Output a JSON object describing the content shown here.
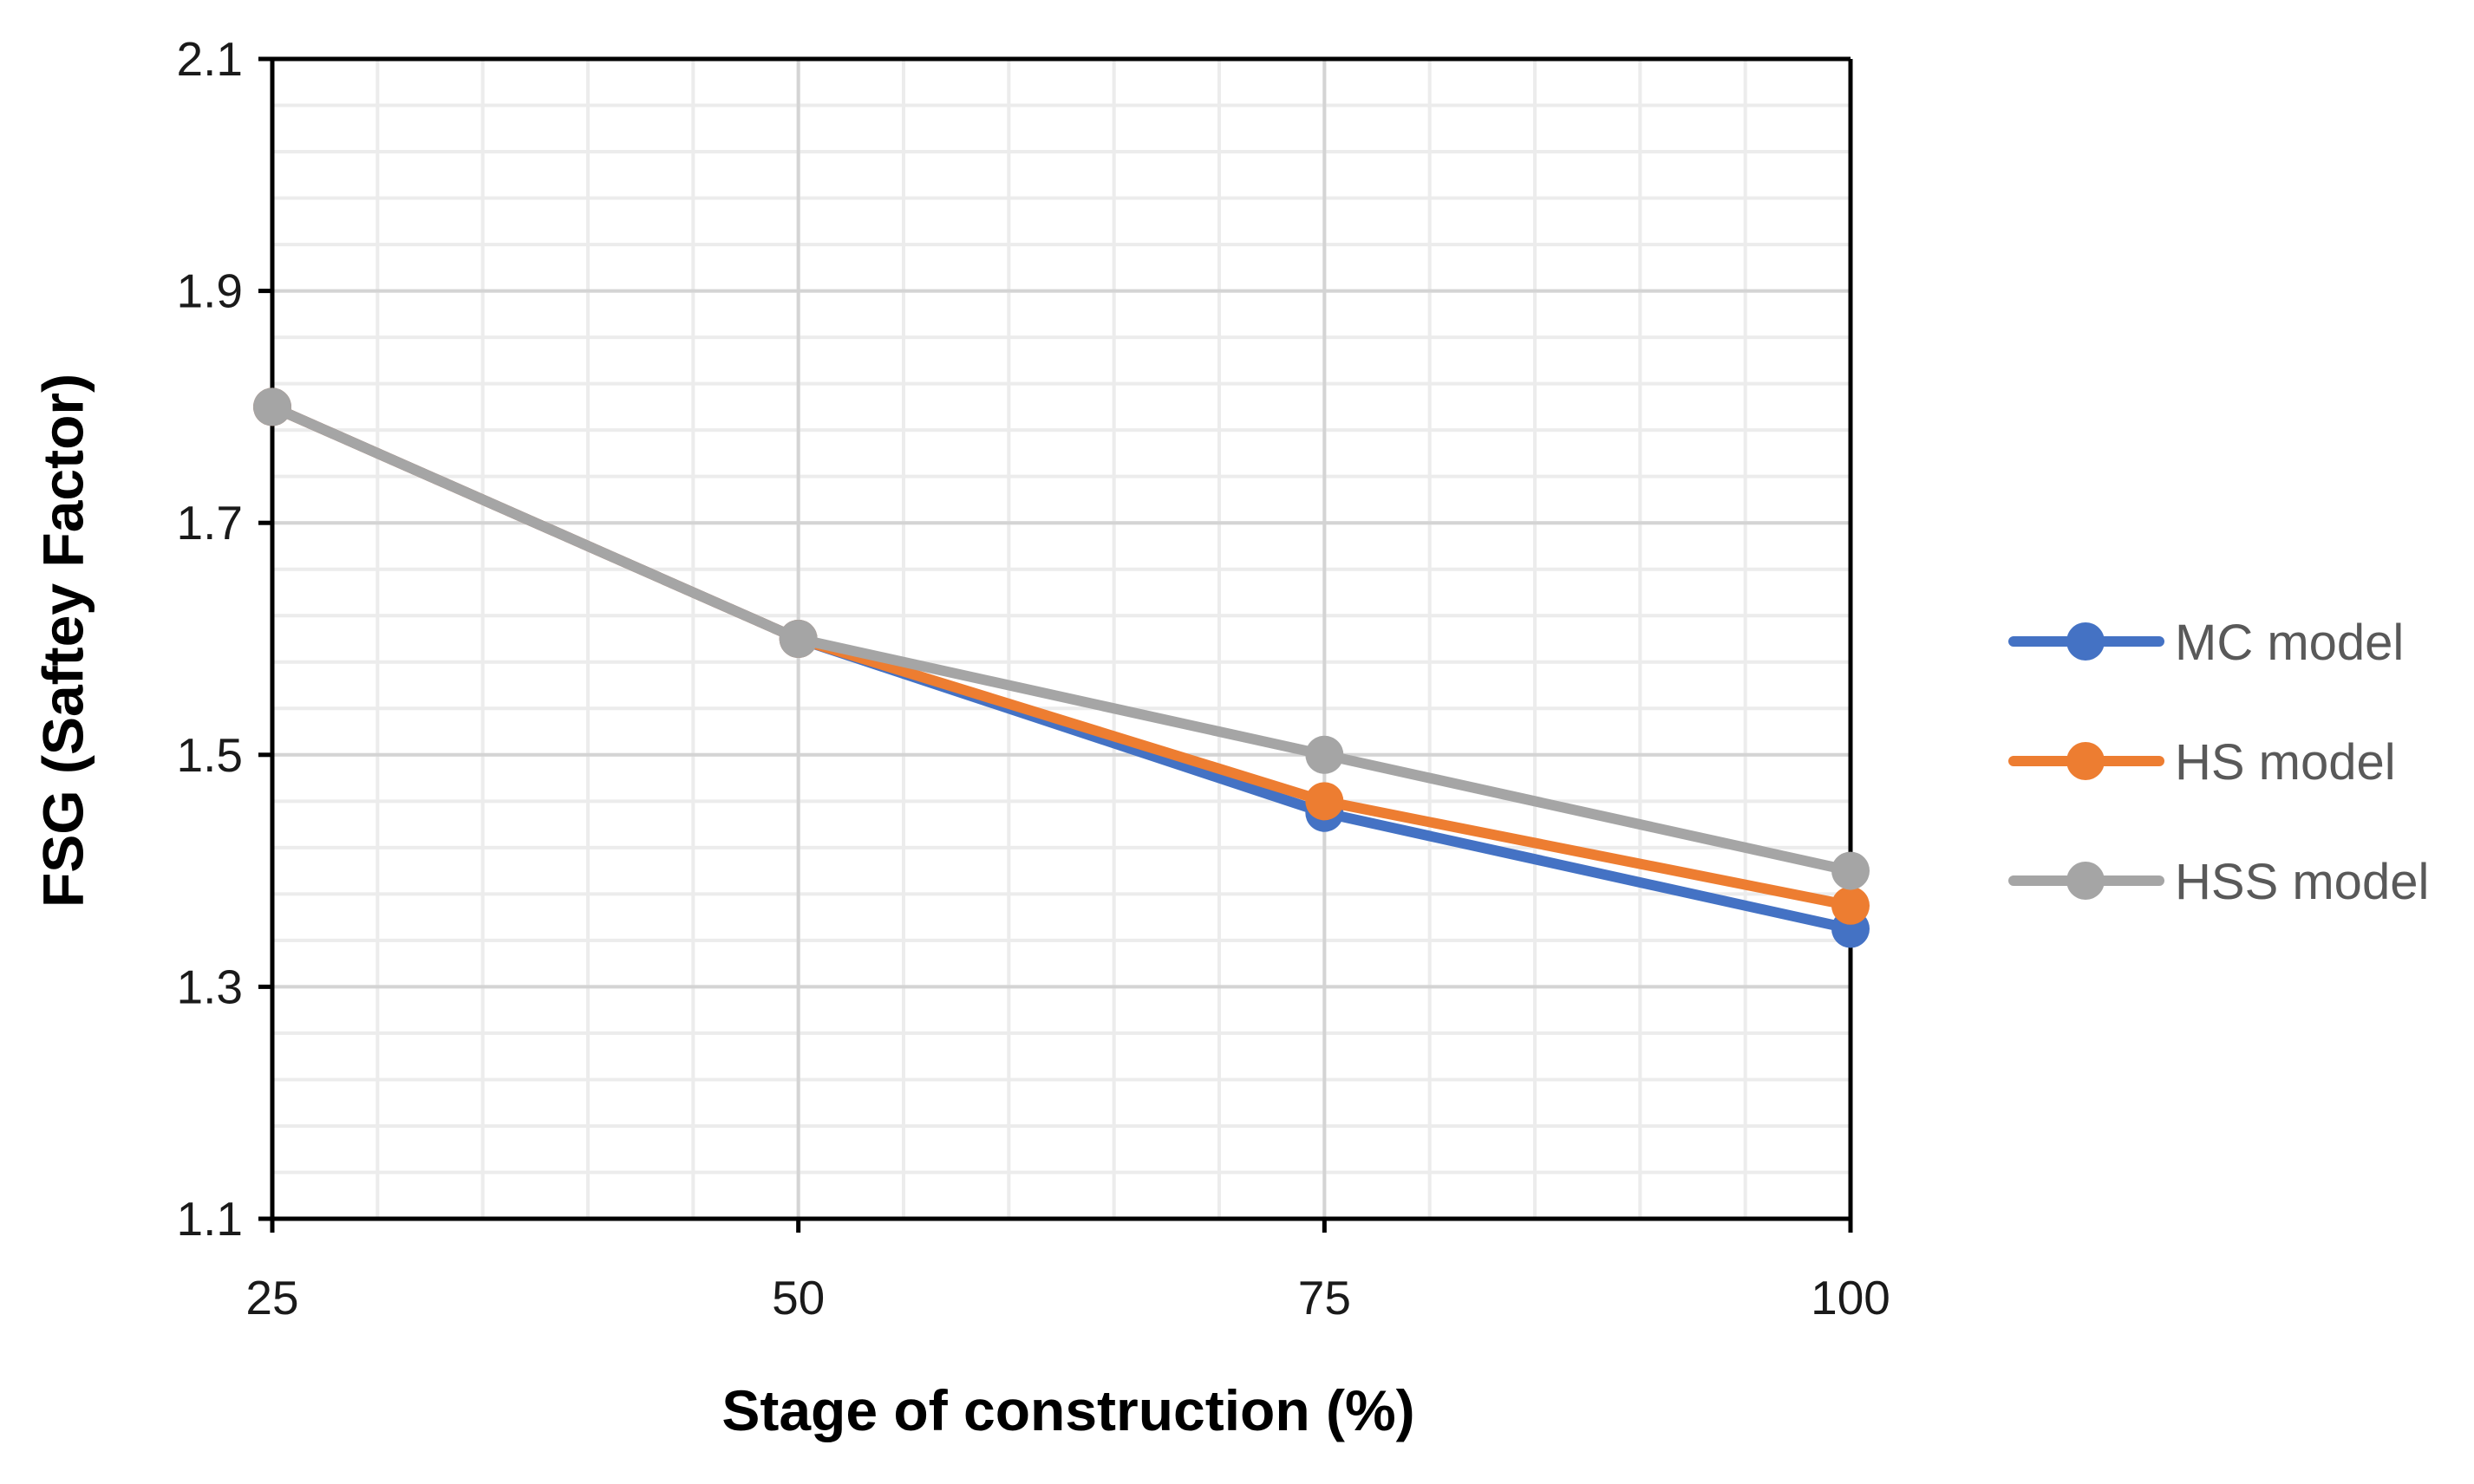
{
  "chart_data": {
    "type": "line",
    "title": "",
    "xlabel": "Stage of construction (%)",
    "ylabel": "FSG (Saftey Factor)",
    "x": [
      25,
      50,
      75,
      100
    ],
    "xticks": [
      "25",
      "50",
      "75",
      "100"
    ],
    "xlim": [
      25,
      100
    ],
    "ylim": [
      1.1,
      2.1
    ],
    "yticks": [
      "1.1",
      "1.3",
      "1.5",
      "1.7",
      "1.9",
      "2.1"
    ],
    "grid": true,
    "legend_position": "right",
    "series": [
      {
        "name": "MC model",
        "color": "#4472C4",
        "values": [
          1.8,
          1.6,
          1.45,
          1.35
        ]
      },
      {
        "name": "HS model",
        "color": "#ED7D31",
        "values": [
          1.8,
          1.6,
          1.46,
          1.37
        ]
      },
      {
        "name": "HSS model",
        "color": "#A5A5A5",
        "values": [
          1.8,
          1.6,
          1.5,
          1.4
        ]
      }
    ]
  }
}
